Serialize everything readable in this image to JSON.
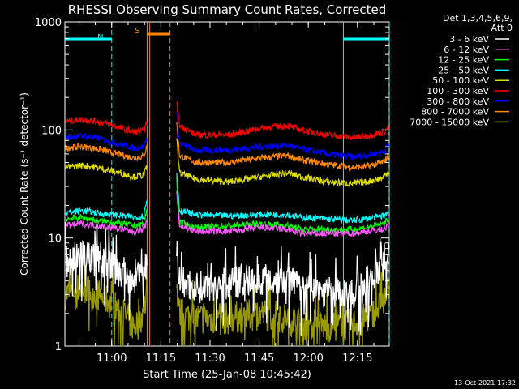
{
  "chart_data": {
    "type": "line",
    "title": "RHESSI Observing Summary Count Rates, Corrected",
    "xlabel": "Start Time (25-Jan-08 10:45:42)",
    "ylabel": "Corrected Count Rate (s⁻¹ detector⁻¹)",
    "y_scale": "log",
    "ylim": [
      1,
      1000
    ],
    "xlim_minutes_after_start": [
      0,
      99
    ],
    "x_ticks": [
      {
        "label": "11:00",
        "minute": 14.3
      },
      {
        "label": "11:15",
        "minute": 29.3
      },
      {
        "label": "11:30",
        "minute": 44.3
      },
      {
        "label": "11:45",
        "minute": 59.3
      },
      {
        "label": "12:00",
        "minute": 74.3
      },
      {
        "label": "12:15",
        "minute": 89.3
      }
    ],
    "y_ticks": [
      {
        "label": "1",
        "value": 1
      },
      {
        "label": "10",
        "value": 10
      },
      {
        "label": "100",
        "value": 100
      },
      {
        "label": "1000",
        "value": 1000
      }
    ],
    "legend": {
      "placement": "right",
      "header": [
        "Det 1,3,4,5,6,9,",
        "Att 0"
      ]
    },
    "gaps_minutes": [
      [
        25.1,
        34.0
      ]
    ],
    "series": [
      {
        "name": "3 - 6 keV",
        "color": "#ffffff",
        "min": 2.5,
        "x": [
          0,
          5,
          10,
          14,
          18,
          21,
          24,
          25,
          34,
          35,
          40,
          50,
          60,
          68,
          72,
          80,
          88,
          92,
          97,
          99
        ],
        "y": [
          6,
          7,
          6.5,
          5.5,
          4.5,
          4,
          4.5,
          6,
          8,
          4,
          3.5,
          3.8,
          4.2,
          4,
          3.5,
          3.2,
          3,
          3.8,
          6,
          7.5
        ]
      },
      {
        "name": "6 - 12 keV",
        "color": "#ff55ff",
        "min": 0,
        "x": [
          0,
          5,
          10,
          14,
          18,
          21,
          24,
          25,
          34,
          35,
          40,
          50,
          60,
          68,
          72,
          80,
          88,
          92,
          97,
          99
        ],
        "y": [
          13,
          13.5,
          13,
          12.5,
          12,
          11.5,
          12,
          14,
          30,
          13,
          11.5,
          11.5,
          12.5,
          12,
          11,
          11,
          11,
          11.5,
          12,
          13
        ]
      },
      {
        "name": "12 - 25 keV",
        "color": "#00ff00",
        "min": 0,
        "x": [
          0,
          5,
          10,
          14,
          18,
          21,
          24,
          25,
          34,
          35,
          40,
          50,
          60,
          68,
          72,
          80,
          88,
          92,
          97,
          99
        ],
        "y": [
          15,
          15.5,
          14.5,
          14,
          13.5,
          13,
          13.5,
          18,
          40,
          14,
          12.5,
          13,
          13.5,
          13,
          12,
          12,
          12,
          12.5,
          13.5,
          15
        ]
      },
      {
        "name": "25 - 50 keV",
        "color": "#00ffff",
        "min": 0,
        "x": [
          0,
          5,
          10,
          14,
          18,
          21,
          24,
          25,
          34,
          35,
          40,
          50,
          60,
          68,
          72,
          80,
          88,
          92,
          97,
          99
        ],
        "y": [
          17,
          18,
          17,
          16.5,
          16,
          15.5,
          16,
          22,
          45,
          18,
          16.5,
          16,
          16.5,
          16.5,
          15.5,
          15,
          14.5,
          15,
          16,
          17.5
        ]
      },
      {
        "name": "50 - 100 keV",
        "color": "#dddd00",
        "min": 0,
        "x": [
          0,
          5,
          10,
          14,
          18,
          21,
          24,
          25,
          34,
          35,
          40,
          50,
          60,
          68,
          72,
          80,
          88,
          92,
          97,
          99
        ],
        "y": [
          45,
          47,
          45,
          42,
          39,
          37,
          38,
          45,
          95,
          40,
          35,
          33,
          37,
          40,
          37,
          33,
          32,
          33,
          36,
          42
        ]
      },
      {
        "name": "100 - 300 keV",
        "color": "#ff0000",
        "min": 0,
        "x": [
          0,
          5,
          10,
          14,
          18,
          21,
          24,
          25,
          34,
          35,
          40,
          50,
          60,
          68,
          72,
          80,
          88,
          92,
          97,
          99
        ],
        "y": [
          120,
          125,
          120,
          112,
          102,
          96,
          98,
          115,
          200,
          110,
          90,
          90,
          104,
          110,
          100,
          90,
          85,
          88,
          95,
          105
        ]
      },
      {
        "name": "300 - 800 keV",
        "color": "#0000ff",
        "min": 0,
        "x": [
          0,
          5,
          10,
          14,
          18,
          21,
          24,
          25,
          34,
          35,
          40,
          50,
          60,
          68,
          72,
          80,
          88,
          92,
          97,
          99
        ],
        "y": [
          85,
          88,
          84,
          78,
          72,
          68,
          70,
          85,
          165,
          75,
          65,
          65,
          70,
          72,
          67,
          60,
          56,
          58,
          63,
          72
        ]
      },
      {
        "name": "800 - 7000 keV",
        "color": "#ff8800",
        "min": 0,
        "x": [
          0,
          5,
          10,
          14,
          18,
          21,
          24,
          25,
          34,
          35,
          40,
          50,
          60,
          68,
          72,
          80,
          88,
          92,
          97,
          99
        ],
        "y": [
          68,
          70,
          67,
          62,
          58,
          55,
          57,
          70,
          130,
          58,
          50,
          50,
          55,
          58,
          53,
          48,
          45,
          46,
          50,
          58
        ]
      },
      {
        "name": "7000 - 15000 keV",
        "color": "#999900",
        "min": 1,
        "x": [
          0,
          5,
          10,
          14,
          18,
          21,
          24,
          25,
          34,
          35,
          40,
          50,
          60,
          68,
          72,
          80,
          88,
          92,
          97,
          99
        ],
        "y": [
          3,
          3.5,
          3,
          2.5,
          2,
          1.5,
          2,
          3,
          4,
          2,
          1.8,
          1.8,
          2,
          1.8,
          1.6,
          1.5,
          1.6,
          1.8,
          2.5,
          3.5
        ]
      }
    ],
    "annotations": [
      {
        "label": "N",
        "color": "#00ffff",
        "minute_span": [
          0,
          14.3
        ],
        "row": "top"
      },
      {
        "label": "N",
        "color": "#00ffff",
        "minute_span": [
          85,
          99
        ],
        "row": "top"
      },
      {
        "label": "S",
        "color": "#ff8800",
        "minute_span": [
          25.1,
          32.1
        ],
        "row": "top"
      }
    ],
    "vlines": [
      {
        "minute": 14.3,
        "color": "#00ffff",
        "style": "dashed"
      },
      {
        "minute": 85,
        "color": "#00ffff",
        "style": "solid"
      },
      {
        "minute": 99,
        "color": "#00ffff",
        "style": "dashed"
      },
      {
        "minute": 25.1,
        "color": "#ff8800",
        "style": "solid"
      },
      {
        "minute": 25.9,
        "color": "#ff8800",
        "style": "solid"
      },
      {
        "minute": 32.1,
        "color": "#ff8800",
        "style": "dashed"
      }
    ]
  },
  "footer_timestamp": "13-Oct-2021 17:32"
}
